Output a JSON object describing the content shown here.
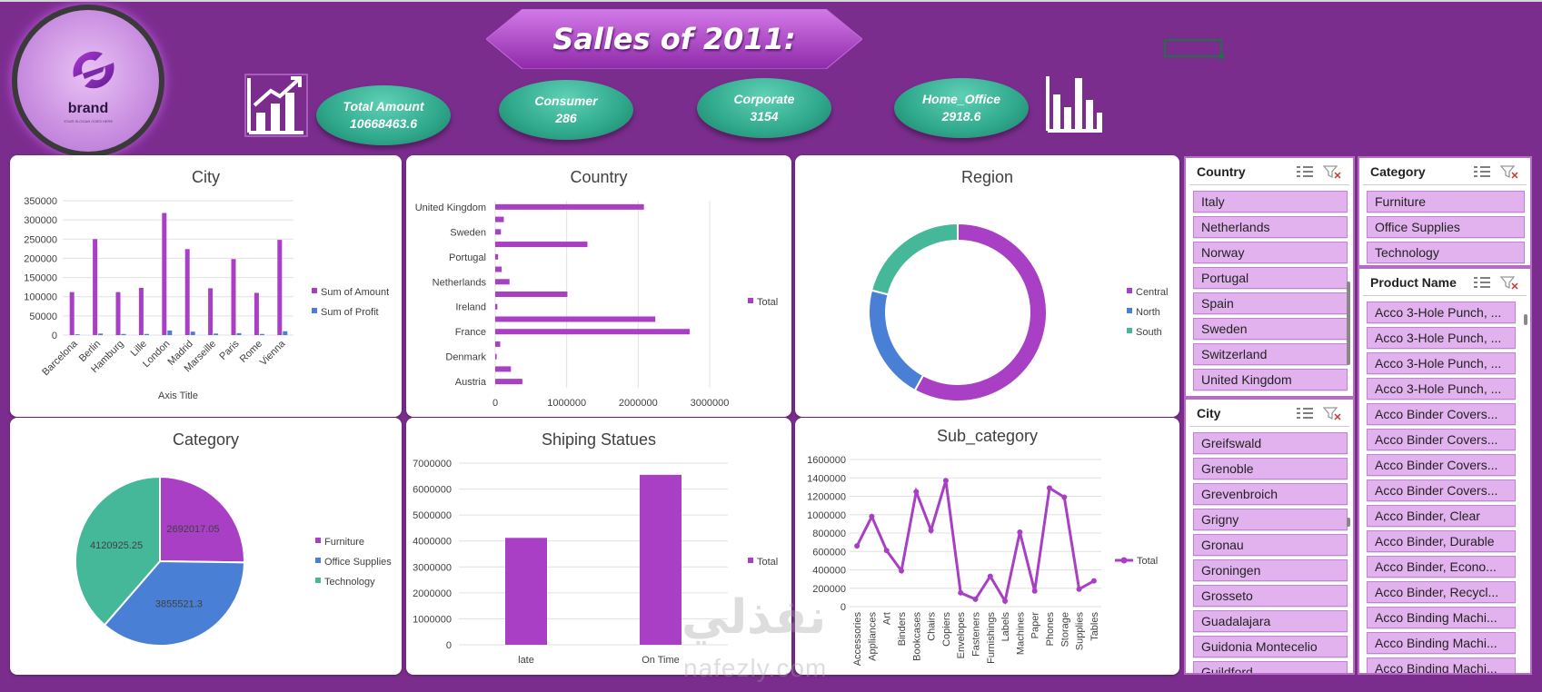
{
  "title": "Salles of 2011:",
  "logo": {
    "brand": "brand",
    "tagline": "YOUR SLOGAN GOES HERE"
  },
  "kpis": [
    {
      "label": "Total Amount",
      "value": "10668463.6"
    },
    {
      "label": "Consumer",
      "value": "286"
    },
    {
      "label": "Corporate",
      "value": "3154"
    },
    {
      "label": "Home_Office",
      "value": "2918.6"
    }
  ],
  "colors": {
    "background": "#7B2D8E",
    "purple": "#A83FC4",
    "blue": "#4A7FD6",
    "teal": "#45B89A",
    "kpi": "#2FA88B"
  },
  "watermark": {
    "arabic": "نفذلي",
    "latin": "nafezly.com"
  },
  "charts": {
    "city": {
      "title": "City"
    },
    "country": {
      "title": "Country"
    },
    "region": {
      "title": "Region"
    },
    "category": {
      "title": "Category"
    },
    "shipping": {
      "title": "Shiping Statues"
    },
    "subcategory": {
      "title": "Sub_category"
    }
  },
  "chart_data": [
    {
      "id": "city",
      "type": "bar",
      "title": "City",
      "xlabel": "Axis Title",
      "ylabel": "",
      "categories": [
        "Barcelona",
        "Berlin",
        "Hamburg",
        "Lille",
        "London",
        "Madrid",
        "Marseille",
        "Paris",
        "Rome",
        "Vienna"
      ],
      "series": [
        {
          "name": "Sum of Amount",
          "color": "#A83FC4",
          "values": [
            112000,
            250000,
            112000,
            123000,
            318000,
            224000,
            122000,
            198000,
            110000,
            248000
          ]
        },
        {
          "name": "Sum of Profit",
          "color": "#4A7FD6",
          "values": [
            2000,
            4000,
            3000,
            3000,
            12000,
            9000,
            4000,
            5000,
            3000,
            10000
          ]
        }
      ],
      "ylim": [
        0,
        350000
      ],
      "yticks": [
        "0",
        "50000",
        "100000",
        "150000",
        "200000",
        "250000",
        "300000",
        "350000"
      ],
      "legend": "right"
    },
    {
      "id": "country",
      "type": "bar",
      "orientation": "horizontal",
      "title": "Country",
      "categories": [
        "United Kingdom",
        "",
        "Sweden",
        "",
        "Portugal",
        "",
        "Netherlands",
        "",
        "Ireland",
        "",
        "France",
        "",
        "Denmark",
        "",
        "Austria"
      ],
      "series": [
        {
          "name": "Total",
          "color": "#A83FC4",
          "values": [
            2080000,
            120000,
            80000,
            1290000,
            40000,
            90000,
            200000,
            1010000,
            30000,
            2240000,
            2720000,
            70000,
            20000,
            220000,
            380000
          ]
        }
      ],
      "xlim": [
        0,
        3000000
      ],
      "xticks": [
        "0",
        "1000000",
        "2000000",
        "3000000"
      ],
      "legend": "right"
    },
    {
      "id": "region",
      "type": "pie",
      "donut": true,
      "title": "Region",
      "labels": [
        "Central",
        "North",
        "South"
      ],
      "colors": [
        "#A83FC4",
        "#4A7FD6",
        "#45B89A"
      ],
      "values": [
        0.58,
        0.21,
        0.21
      ],
      "legend": "right"
    },
    {
      "id": "category",
      "type": "pie",
      "title": "Category",
      "labels": [
        "Furniture",
        "Office Supplies",
        "Technology"
      ],
      "colors": [
        "#A83FC4",
        "#4A7FD6",
        "#45B89A"
      ],
      "values": [
        2692017.05,
        3855521.3,
        4120925.25
      ],
      "data_labels": [
        "2692017.05",
        "3855521.3",
        "4120925.25"
      ],
      "legend": "right"
    },
    {
      "id": "shipping",
      "type": "bar",
      "title": "Shiping Statues",
      "categories": [
        "late",
        "On Time"
      ],
      "series": [
        {
          "name": "Total",
          "color": "#A83FC4",
          "values": [
            4120000,
            6550000
          ]
        }
      ],
      "ylim": [
        0,
        7000000
      ],
      "yticks": [
        "0",
        "1000000",
        "2000000",
        "3000000",
        "4000000",
        "5000000",
        "6000000",
        "7000000"
      ],
      "legend": "right"
    },
    {
      "id": "subcategory",
      "type": "line",
      "title": "Sub_category",
      "categories": [
        "Accessories",
        "Appliances",
        "Art",
        "Binders",
        "Bookcases",
        "Chairs",
        "Copiers",
        "Envelopes",
        "Fasteners",
        "Furnishings",
        "Labels",
        "Machines",
        "Paper",
        "Phones",
        "Storage",
        "Supplies",
        "Tables"
      ],
      "series": [
        {
          "name": "Total",
          "color": "#A83FC4",
          "values": [
            660000,
            980000,
            610000,
            390000,
            1250000,
            830000,
            1370000,
            150000,
            80000,
            330000,
            60000,
            810000,
            170000,
            1290000,
            1190000,
            190000,
            280000
          ]
        }
      ],
      "ylim": [
        0,
        1600000
      ],
      "yticks": [
        "0",
        "200000",
        "400000",
        "600000",
        "800000",
        "1000000",
        "1200000",
        "1400000",
        "1600000"
      ],
      "legend": "right"
    }
  ],
  "slicers": {
    "country": {
      "title": "Country",
      "items": [
        "Italy",
        "Netherlands",
        "Norway",
        "Portugal",
        "Spain",
        "Sweden",
        "Switzerland",
        "United Kingdom"
      ]
    },
    "city": {
      "title": "City",
      "items": [
        "Greifswald",
        "Grenoble",
        "Grevenbroich",
        "Grigny",
        "Gronau",
        "Groningen",
        "Grosseto",
        "Guadalajara",
        "Guidonia Montecelio",
        "Guildford"
      ]
    },
    "category": {
      "title": "Category",
      "items": [
        "Furniture",
        "Office Supplies",
        "Technology"
      ]
    },
    "product": {
      "title": "Product Name",
      "items": [
        "Acco 3-Hole Punch, ...",
        "Acco 3-Hole Punch, ...",
        "Acco 3-Hole Punch, ...",
        "Acco 3-Hole Punch, ...",
        "Acco Binder Covers...",
        "Acco Binder Covers...",
        "Acco Binder Covers...",
        "Acco Binder Covers...",
        "Acco Binder, Clear",
        "Acco Binder, Durable",
        "Acco Binder, Econo...",
        "Acco Binder, Recycl...",
        "Acco Binding Machi...",
        "Acco Binding Machi...",
        "Acco Binding Machi..."
      ]
    }
  }
}
